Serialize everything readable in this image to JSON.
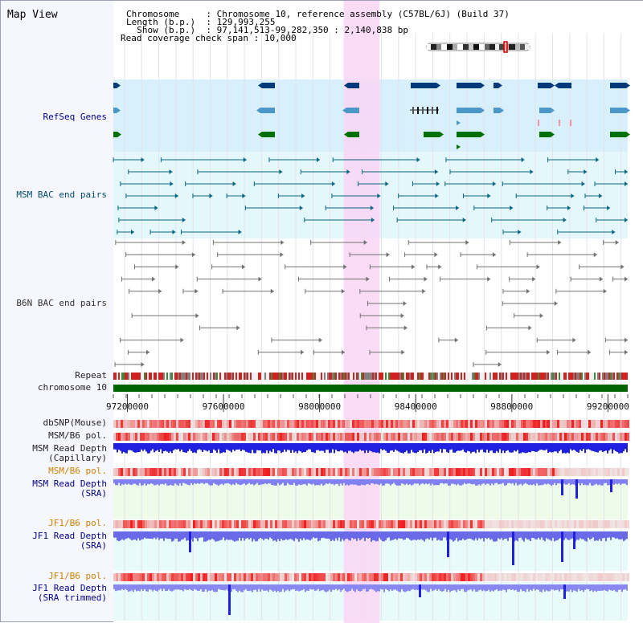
{
  "title": "Map View",
  "info": {
    "chromosome_label": "Chromosome",
    "chromosome_value": "Chromosome 10, reference assembly (C57BL/6J) (Build 37)",
    "length_label": "Length (b.p.)",
    "length_value": "129,993,255",
    "show_label": "Show (b.p.)",
    "show_value": "97,141,513-99,282,350 : 2,140,838 bp",
    "coverage_label": "Read coverage check span",
    "coverage_value": "10,000"
  },
  "tracks": {
    "refseq": "RefSeq Genes",
    "msm_bac": "MSM BAC end pairs",
    "b6n_bac": "B6N BAC end pairs",
    "repeat": "Repeat",
    "chromosome": "chromosome 10",
    "dbsnp": "dbSNP(Mouse)",
    "msm_b6_pol_1": "MSM/B6 pol.",
    "msm_depth_cap_1": "MSM Read Depth",
    "msm_depth_cap_2": "(Capillary)",
    "msm_b6_pol_2": "MSM/B6 pol.",
    "msm_depth_sra": "MSM Read Depth",
    "msm_depth_sra_2": "(SRA)",
    "jf1_b6_pol_1": "JF1/B6 pol.",
    "jf1_depth_1": "JF1 Read Depth",
    "jf1_depth_1b": "(SRA)",
    "jf1_b6_pol_2": "JF1/B6 pol.",
    "jf1_depth_2": "JF1 Read Depth",
    "jf1_depth_2b": "(SRA trimmed)"
  },
  "axis": {
    "range": [
      97141513,
      99282350
    ],
    "ticks": [
      "97200000",
      "97600000",
      "98000000",
      "98400000",
      "98800000",
      "99200000"
    ],
    "tick_values": [
      97200000,
      97600000,
      98000000,
      98400000,
      98800000,
      99200000
    ]
  },
  "highlight_range": [
    98100000,
    98250000
  ],
  "colors": {
    "refseq_bg": "#d8f0fb",
    "msm_bg": "#e4f8fb",
    "highlight": "#fad6f4",
    "gene_dark": "#003a7a",
    "gene_mid": "#4b98c8",
    "gene_green": "#007000",
    "chrom": "#006400",
    "msm_line": "#0a6680",
    "b6n_line": "#707070"
  }
}
